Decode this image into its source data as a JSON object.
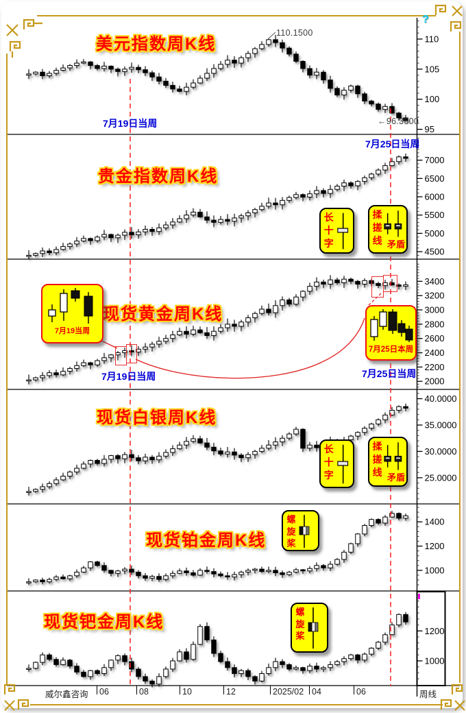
{
  "app": {
    "help_icon": "?",
    "brand": "威尔鑫咨询",
    "period_label": "周线"
  },
  "timeline": {
    "labels": [
      "06",
      "08",
      "10",
      "12",
      "2025/02",
      "04",
      "06"
    ]
  },
  "labels": {
    "jul19_week": "7月19日当周",
    "jul25_week": "7月25日当周",
    "long_cross": "长十字",
    "rubbing_line": "揉搓线",
    "contradiction": "矛盾",
    "propeller": "螺旋桨",
    "jul19_box": "7月19当周",
    "jul25_this_week_box": "7月25日本周"
  },
  "colors": {
    "gold_frame": "#C79A1C",
    "title_red": "#FF0000",
    "title_glow": "#FFD928",
    "blue_label": "#0000D6",
    "callout_bg": "#FFFF00",
    "red_line": "#FF1F1F",
    "cyan_help": "#00CCEE"
  },
  "chart_data": [
    {
      "type": "candlestick",
      "title": "美元指数周K线",
      "ylim": [
        94.5,
        113.3
      ],
      "yticks": [
        {
          "v": 110,
          "label": "110"
        },
        {
          "v": 105,
          "label": "105"
        },
        {
          "v": 100,
          "label": "100"
        },
        {
          "v": 95,
          "label": "95"
        }
      ],
      "high_marker": {
        "index": 35,
        "value": 110.15,
        "label": "110.1500"
      },
      "low_marker": {
        "index": 55,
        "value": 96.36,
        "label": "96.3600",
        "arrow": "←"
      },
      "closes": [
        104.2,
        104.5,
        103.9,
        104.3,
        104.8,
        105.2,
        105.6,
        106.0,
        106.2,
        105.6,
        105.1,
        105.5,
        105.0,
        104.6,
        105.0,
        105.3,
        104.9,
        104.4,
        103.7,
        103.0,
        102.3,
        101.7,
        101.3,
        102.0,
        102.7,
        103.5,
        104.3,
        105.1,
        105.8,
        106.5,
        106.0,
        106.9,
        107.6,
        108.4,
        109.1,
        109.9,
        109.4,
        108.5,
        107.5,
        106.3,
        105.1,
        104.0,
        104.5,
        103.2,
        101.8,
        100.7,
        101.5,
        102.2,
        100.9,
        99.7,
        99.2,
        98.3,
        98.8,
        97.7,
        96.9,
        96.4
      ]
    },
    {
      "type": "candlestick",
      "title": "贵金指数周K线",
      "ylim": [
        4333,
        7667
      ],
      "yticks": [
        {
          "v": 7000,
          "label": "7000"
        },
        {
          "v": 6500,
          "label": "6500"
        },
        {
          "v": 6000,
          "label": "6000"
        },
        {
          "v": 5500,
          "label": "5500"
        },
        {
          "v": 5000,
          "label": "5000"
        },
        {
          "v": 4500,
          "label": "4500"
        }
      ],
      "closes": [
        4400,
        4450,
        4520,
        4470,
        4560,
        4640,
        4710,
        4790,
        4860,
        4800,
        4900,
        4970,
        4880,
        4950,
        5030,
        4960,
        5040,
        5110,
        5050,
        5150,
        5230,
        5310,
        5400,
        5500,
        5580,
        5450,
        5360,
        5300,
        5380,
        5330,
        5420,
        5480,
        5560,
        5650,
        5740,
        5830,
        5780,
        5900,
        5980,
        6060,
        5990,
        6080,
        6170,
        6090,
        6200,
        6290,
        6380,
        6300,
        6420,
        6520,
        6620,
        6730,
        6850,
        6960,
        7090,
        7050
      ]
    },
    {
      "type": "candlestick",
      "title": "现货黄金周K线",
      "ylim": [
        1906,
        3691
      ],
      "yticks": [
        {
          "v": 3400,
          "label": "3400"
        },
        {
          "v": 3200,
          "label": "3200"
        },
        {
          "v": 3000,
          "label": "3000"
        },
        {
          "v": 2800,
          "label": "2800"
        },
        {
          "v": 2600,
          "label": "2600"
        },
        {
          "v": 2400,
          "label": "2400"
        },
        {
          "v": 2200,
          "label": "2200"
        },
        {
          "v": 2000,
          "label": "2000"
        }
      ],
      "closes": [
        2020,
        2050,
        2080,
        2120,
        2090,
        2140,
        2180,
        2220,
        2260,
        2230,
        2290,
        2330,
        2370,
        2400,
        2430,
        2410,
        2450,
        2480,
        2520,
        2560,
        2600,
        2650,
        2700,
        2660,
        2720,
        2680,
        2640,
        2700,
        2750,
        2800,
        2770,
        2830,
        2890,
        2950,
        3010,
        2960,
        3060,
        3140,
        3080,
        3180,
        3260,
        3330,
        3390,
        3360,
        3420,
        3380,
        3430,
        3400,
        3360,
        3410,
        3370,
        3340,
        3380,
        3350,
        3330,
        3350
      ]
    },
    {
      "type": "candlestick",
      "title": "现货白银周K线",
      "ylim": [
        20.3,
        41.5
      ],
      "yticks": [
        {
          "v": 40,
          "label": "40.0000"
        },
        {
          "v": 35,
          "label": "35.0000"
        },
        {
          "v": 30,
          "label": "30.0000"
        },
        {
          "v": 25,
          "label": "25.0000"
        }
      ],
      "closes": [
        22.4,
        22.8,
        23.3,
        23.9,
        24.6,
        25.3,
        26.1,
        26.8,
        27.6,
        28.3,
        27.7,
        28.5,
        29.2,
        28.6,
        29.4,
        28.8,
        28.2,
        28.9,
        28.4,
        29.1,
        29.8,
        30.5,
        31.2,
        31.9,
        32.4,
        31.6,
        30.8,
        30.1,
        29.5,
        29.9,
        29.3,
        28.8,
        29.4,
        30.0,
        30.6,
        31.2,
        31.8,
        32.5,
        33.3,
        34.2,
        30.6,
        31.2,
        30.7,
        31.4,
        32.0,
        31.5,
        32.2,
        32.9,
        33.6,
        34.4,
        35.2,
        36.0,
        36.9,
        37.8,
        38.5,
        38.2
      ]
    },
    {
      "type": "candlestick",
      "title": "现货铂金周K线",
      "ylim": [
        841,
        1537
      ],
      "yticks": [
        {
          "v": 1400,
          "label": "1400"
        },
        {
          "v": 1200,
          "label": "1200"
        },
        {
          "v": 1000,
          "label": "1000"
        }
      ],
      "closes": [
        905,
        920,
        905,
        925,
        945,
        930,
        955,
        985,
        1020,
        1070,
        1040,
        1000,
        975,
        995,
        1010,
        985,
        955,
        935,
        950,
        925,
        955,
        975,
        995,
        980,
        960,
        1000,
        990,
        970,
        955,
        945,
        965,
        985,
        1000,
        1010,
        990,
        1000,
        980,
        965,
        985,
        1005,
        995,
        1015,
        1040,
        1020,
        1050,
        1090,
        1150,
        1220,
        1300,
        1370,
        1420,
        1390,
        1440,
        1470,
        1430,
        1450
      ]
    },
    {
      "type": "candlestick",
      "title": "现货钯金周K线",
      "ylim": [
        844,
        1458
      ],
      "yticks": [
        {
          "v": 1200,
          "label": "1200"
        },
        {
          "v": 1000,
          "label": "1000"
        }
      ],
      "closes": [
        950,
        990,
        1040,
        1010,
        975,
        1005,
        965,
        925,
        895,
        935,
        915,
        955,
        1005,
        1035,
        995,
        945,
        895,
        865,
        845,
        895,
        945,
        1000,
        1060,
        1010,
        1110,
        1230,
        1140,
        1050,
        995,
        955,
        915,
        935,
        895,
        865,
        915,
        955,
        995,
        975,
        945,
        955,
        935,
        965,
        945,
        955,
        975,
        995,
        1015,
        1040,
        1005,
        1045,
        1085,
        1125,
        1175,
        1240,
        1310,
        1260
      ]
    }
  ]
}
